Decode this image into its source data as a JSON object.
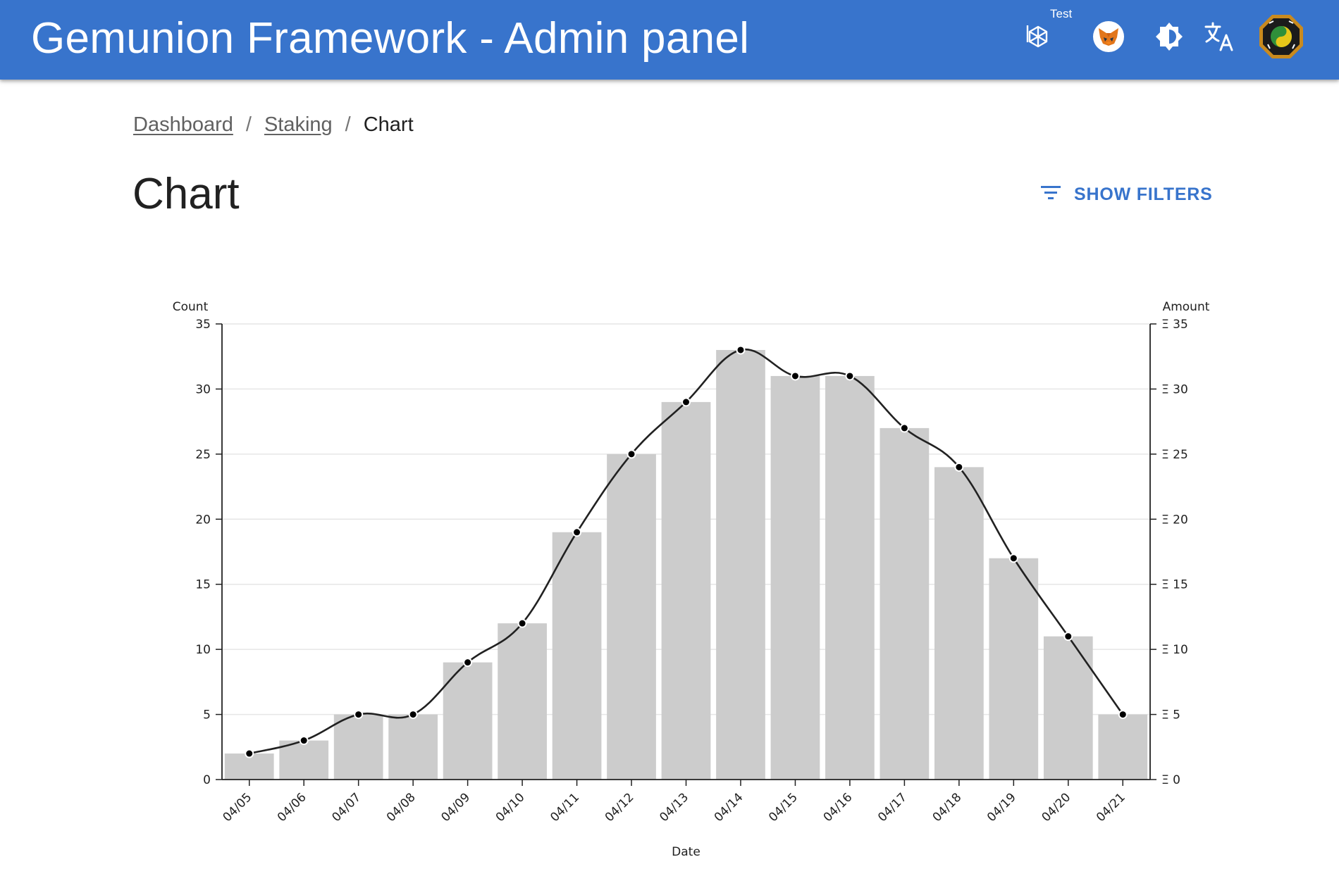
{
  "header": {
    "title": "Gemunion Framework - Admin panel",
    "network_label": "Test",
    "icons": [
      "network-icon",
      "metamask-fox-icon",
      "brightness-icon",
      "translate-icon",
      "user-avatar-logo"
    ],
    "background": "#3874cc"
  },
  "breadcrumb": {
    "items": [
      "Dashboard",
      "Staking",
      "Chart"
    ],
    "separator": "/"
  },
  "page": {
    "title": "Chart",
    "filters_label": "SHOW FILTERS",
    "accent": "#3874cc"
  },
  "chart_data": {
    "type": "bar",
    "xlabel": "Date",
    "ylabel_left": "Count",
    "ylabel_right": "Amount",
    "categories": [
      "04/05",
      "04/06",
      "04/07",
      "04/08",
      "04/09",
      "04/10",
      "04/11",
      "04/12",
      "04/13",
      "04/14",
      "04/15",
      "04/16",
      "04/17",
      "04/18",
      "04/19",
      "04/20",
      "04/21"
    ],
    "series": [
      {
        "type": "bar",
        "axis": "left",
        "color": "#cccccc",
        "values": [
          2,
          3,
          5,
          5,
          9,
          12,
          19,
          25,
          29,
          33,
          31,
          31,
          27,
          24,
          17,
          11,
          5
        ]
      },
      {
        "type": "line",
        "axis": "right",
        "color": "#212121",
        "values": [
          2,
          3,
          5,
          5,
          9,
          12,
          19,
          25,
          29,
          33,
          31,
          31,
          27,
          24,
          17,
          11,
          5
        ]
      }
    ],
    "ylim": [
      0,
      35
    ],
    "yticks_left": [
      "0",
      "5",
      "10",
      "15",
      "20",
      "25",
      "30",
      "35"
    ],
    "yticks_right": [
      "Ξ 0",
      "Ξ 5",
      "Ξ 10",
      "Ξ 15",
      "Ξ 20",
      "Ξ 25",
      "Ξ 30",
      "Ξ 35"
    ],
    "grid": true,
    "legend": "none"
  }
}
